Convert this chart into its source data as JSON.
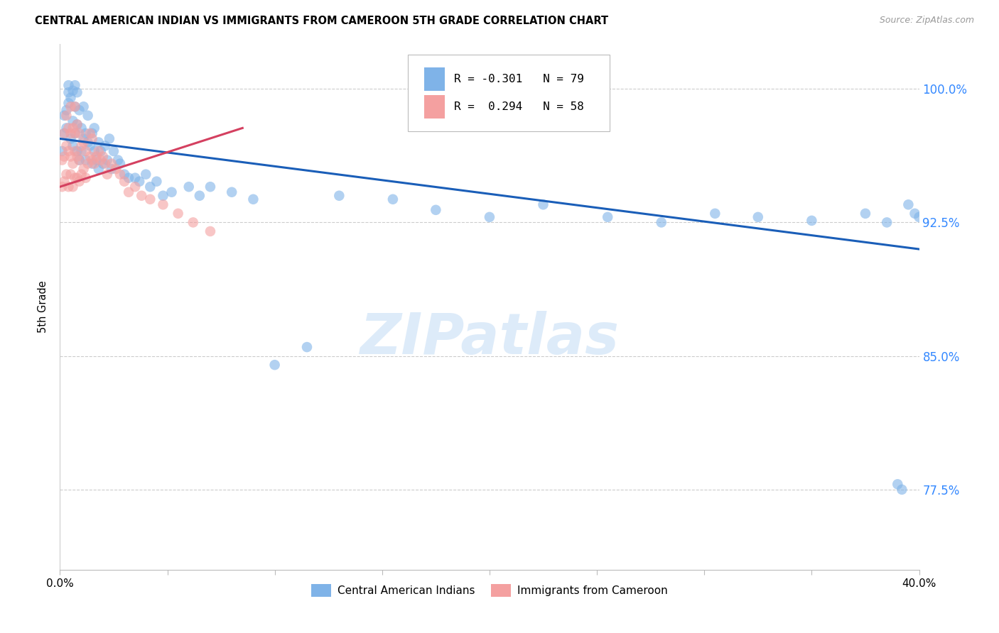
{
  "title": "CENTRAL AMERICAN INDIAN VS IMMIGRANTS FROM CAMEROON 5TH GRADE CORRELATION CHART",
  "source": "Source: ZipAtlas.com",
  "ylabel": "5th Grade",
  "ytick_labels": [
    "77.5%",
    "85.0%",
    "92.5%",
    "100.0%"
  ],
  "ytick_values": [
    0.775,
    0.85,
    0.925,
    1.0
  ],
  "xlim": [
    0.0,
    0.4
  ],
  "ylim": [
    0.73,
    1.025
  ],
  "blue_color": "#7FB3E8",
  "pink_color": "#F4A0A0",
  "blue_line_color": "#1A5EB8",
  "pink_line_color": "#D44060",
  "R_blue": -0.301,
  "N_blue": 79,
  "R_pink": 0.294,
  "N_pink": 58,
  "legend_label_blue": "Central American Indians",
  "legend_label_pink": "Immigrants from Cameroon",
  "blue_line_x0": 0.0,
  "blue_line_y0": 0.972,
  "blue_line_x1": 0.4,
  "blue_line_y1": 0.91,
  "pink_line_x0": 0.0,
  "pink_line_y0": 0.945,
  "pink_line_x1": 0.085,
  "pink_line_y1": 0.978,
  "blue_points_x": [
    0.001,
    0.002,
    0.002,
    0.003,
    0.003,
    0.004,
    0.004,
    0.004,
    0.005,
    0.005,
    0.006,
    0.006,
    0.006,
    0.007,
    0.007,
    0.007,
    0.008,
    0.008,
    0.008,
    0.009,
    0.009,
    0.01,
    0.01,
    0.011,
    0.011,
    0.012,
    0.012,
    0.013,
    0.013,
    0.014,
    0.015,
    0.015,
    0.016,
    0.016,
    0.017,
    0.018,
    0.018,
    0.019,
    0.02,
    0.021,
    0.022,
    0.023,
    0.024,
    0.025,
    0.027,
    0.028,
    0.03,
    0.032,
    0.035,
    0.037,
    0.04,
    0.042,
    0.045,
    0.048,
    0.052,
    0.06,
    0.065,
    0.07,
    0.08,
    0.09,
    0.1,
    0.115,
    0.13,
    0.155,
    0.175,
    0.2,
    0.225,
    0.255,
    0.28,
    0.305,
    0.325,
    0.35,
    0.375,
    0.385,
    0.39,
    0.392,
    0.395,
    0.398,
    0.4
  ],
  "blue_points_y": [
    0.965,
    0.975,
    0.985,
    0.978,
    0.988,
    0.992,
    0.998,
    1.002,
    0.972,
    0.995,
    0.968,
    0.982,
    0.999,
    0.975,
    0.99,
    1.002,
    0.965,
    0.98,
    0.998,
    0.96,
    0.988,
    0.965,
    0.978,
    0.972,
    0.99,
    0.96,
    0.975,
    0.97,
    0.985,
    0.968,
    0.958,
    0.975,
    0.965,
    0.978,
    0.96,
    0.955,
    0.97,
    0.965,
    0.958,
    0.968,
    0.96,
    0.972,
    0.955,
    0.965,
    0.96,
    0.958,
    0.952,
    0.95,
    0.95,
    0.948,
    0.952,
    0.945,
    0.948,
    0.94,
    0.942,
    0.945,
    0.94,
    0.945,
    0.942,
    0.938,
    0.845,
    0.855,
    0.94,
    0.938,
    0.932,
    0.928,
    0.935,
    0.928,
    0.925,
    0.93,
    0.928,
    0.926,
    0.93,
    0.925,
    0.778,
    0.775,
    0.935,
    0.93,
    0.928
  ],
  "pink_points_x": [
    0.001,
    0.001,
    0.002,
    0.002,
    0.002,
    0.003,
    0.003,
    0.003,
    0.004,
    0.004,
    0.004,
    0.005,
    0.005,
    0.005,
    0.005,
    0.006,
    0.006,
    0.006,
    0.007,
    0.007,
    0.007,
    0.007,
    0.008,
    0.008,
    0.008,
    0.009,
    0.009,
    0.009,
    0.01,
    0.01,
    0.011,
    0.011,
    0.012,
    0.012,
    0.013,
    0.014,
    0.014,
    0.015,
    0.015,
    0.016,
    0.017,
    0.018,
    0.019,
    0.02,
    0.021,
    0.022,
    0.024,
    0.026,
    0.028,
    0.03,
    0.032,
    0.035,
    0.038,
    0.042,
    0.048,
    0.055,
    0.062,
    0.07
  ],
  "pink_points_y": [
    0.945,
    0.96,
    0.948,
    0.962,
    0.975,
    0.952,
    0.968,
    0.985,
    0.945,
    0.965,
    0.978,
    0.952,
    0.962,
    0.975,
    0.99,
    0.945,
    0.958,
    0.978,
    0.95,
    0.965,
    0.975,
    0.99,
    0.95,
    0.962,
    0.98,
    0.948,
    0.96,
    0.975,
    0.952,
    0.968,
    0.955,
    0.97,
    0.95,
    0.965,
    0.958,
    0.962,
    0.975,
    0.96,
    0.972,
    0.958,
    0.962,
    0.965,
    0.96,
    0.962,
    0.958,
    0.952,
    0.958,
    0.955,
    0.952,
    0.948,
    0.942,
    0.945,
    0.94,
    0.938,
    0.935,
    0.93,
    0.925,
    0.92
  ],
  "watermark_text": "ZIPatlas",
  "grid_color": "#CCCCCC"
}
